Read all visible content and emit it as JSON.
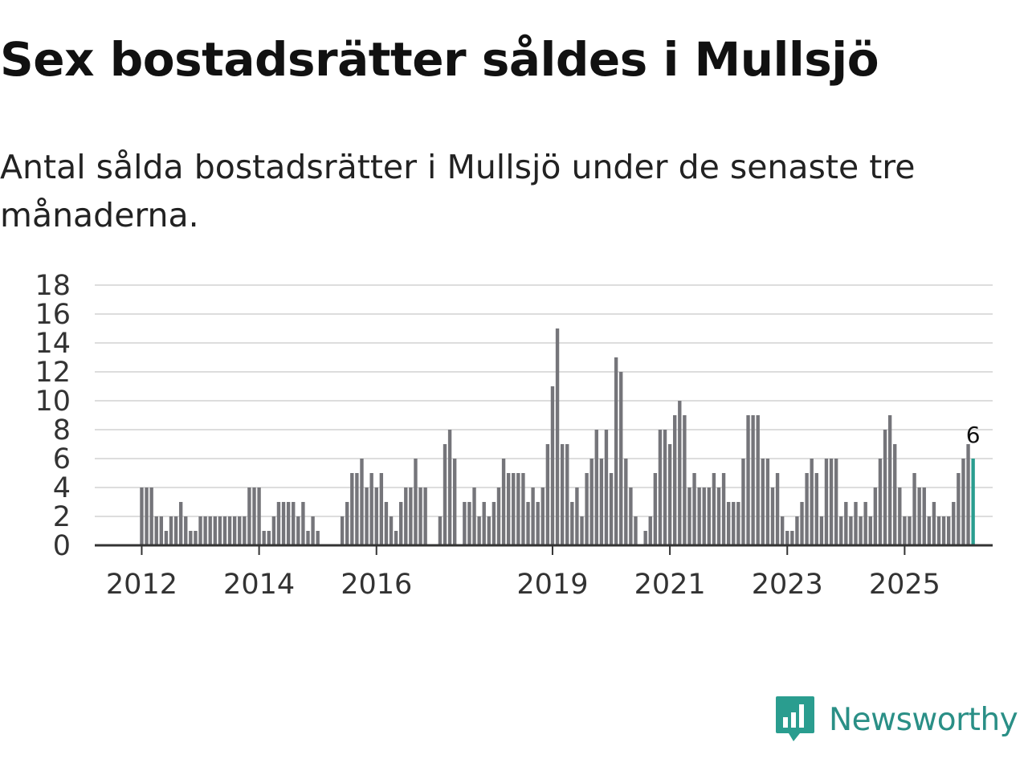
{
  "title": "Sex bostadsrätter såldes i Mullsjö",
  "subtitle": "Antal sålda bostadsrätter i Mullsjö under de senaste tre månaderna.",
  "logo_text": "Newsworthy",
  "colors": {
    "bar": "#75757a",
    "highlight": "#2a9d8f",
    "grid": "#dddddd",
    "axis": "#333333",
    "brand": "#2a8f86"
  },
  "chart_data": {
    "type": "bar",
    "title": "Antal sålda bostadsrätter i Mullsjö",
    "xlabel": "",
    "ylabel": "",
    "ylim": [
      0,
      18
    ],
    "yticks": [
      0,
      2,
      4,
      6,
      8,
      10,
      12,
      14,
      16,
      18
    ],
    "x_start": "2011-01",
    "x_interval": "month",
    "x_range": [
      2011.2,
      2026.5
    ],
    "xtick_labels": [
      {
        "label": "2012",
        "value": 2012
      },
      {
        "label": "2014",
        "value": 2014
      },
      {
        "label": "2016",
        "value": 2016
      },
      {
        "label": "2019",
        "value": 2019
      },
      {
        "label": "2021",
        "value": 2021
      },
      {
        "label": "2023",
        "value": 2023
      },
      {
        "label": "2025",
        "value": 2025
      }
    ],
    "values": [
      0,
      0,
      0,
      0,
      0,
      0,
      0,
      0,
      0,
      0,
      0,
      0,
      4,
      4,
      4,
      2,
      2,
      1,
      2,
      2,
      3,
      2,
      1,
      1,
      2,
      2,
      2,
      2,
      2,
      2,
      2,
      2,
      2,
      2,
      4,
      4,
      4,
      1,
      1,
      2,
      3,
      3,
      3,
      3,
      2,
      3,
      1,
      2,
      1,
      0,
      0,
      0,
      0,
      2,
      3,
      5,
      5,
      6,
      4,
      5,
      4,
      5,
      3,
      2,
      1,
      3,
      4,
      4,
      6,
      4,
      4,
      0,
      0,
      2,
      7,
      8,
      6,
      0,
      3,
      3,
      4,
      2,
      3,
      2,
      3,
      4,
      6,
      5,
      5,
      5,
      5,
      3,
      4,
      3,
      4,
      7,
      11,
      15,
      7,
      7,
      3,
      4,
      2,
      5,
      6,
      8,
      6,
      8,
      5,
      13,
      12,
      6,
      4,
      2,
      0,
      1,
      2,
      5,
      8,
      8,
      7,
      9,
      10,
      9,
      4,
      5,
      4,
      4,
      4,
      5,
      4,
      5,
      3,
      3,
      3,
      6,
      9,
      9,
      9,
      6,
      6,
      4,
      5,
      2,
      1,
      1,
      2,
      3,
      5,
      6,
      5,
      2,
      6,
      6,
      6,
      2,
      3,
      2,
      3,
      2,
      3,
      2,
      4,
      6,
      8,
      9,
      7,
      4,
      2,
      2,
      5,
      4,
      4,
      2,
      3,
      2,
      2,
      2,
      3,
      5,
      6,
      7,
      6
    ],
    "highlight_last": true,
    "last_value_label": "6"
  }
}
